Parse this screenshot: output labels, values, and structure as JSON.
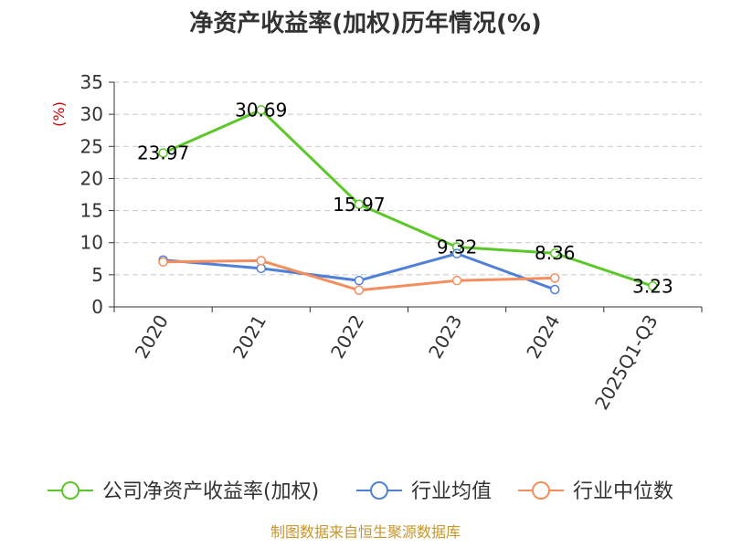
{
  "chart_data": {
    "type": "line",
    "title": "净资产收益率(加权)历年情况(%)",
    "unit_label": "(%)",
    "categories": [
      "2020",
      "2021",
      "2022",
      "2023",
      "2024",
      "2025Q1-Q3"
    ],
    "ylim": [
      0,
      35
    ],
    "yticks": [
      0,
      5,
      10,
      15,
      20,
      25,
      30,
      35
    ],
    "grid": true,
    "legend_position": "bottom",
    "series": [
      {
        "name": "公司净资产收益率(加权)",
        "color": "#5cc72a",
        "values": [
          23.97,
          30.69,
          15.97,
          9.32,
          8.36,
          3.23
        ],
        "labels": [
          "23.97",
          "30.69",
          "15.97",
          "9.32",
          "8.36",
          "3.23"
        ]
      },
      {
        "name": "行业均值",
        "color": "#4f7fd9",
        "values": [
          7.3,
          6.0,
          4.1,
          8.3,
          2.7,
          null
        ]
      },
      {
        "name": "行业中位数",
        "color": "#f58d5d",
        "values": [
          7.0,
          7.2,
          2.6,
          4.1,
          4.5,
          null
        ]
      }
    ]
  },
  "footer": {
    "source": "制图数据来自恒生聚源数据库"
  }
}
